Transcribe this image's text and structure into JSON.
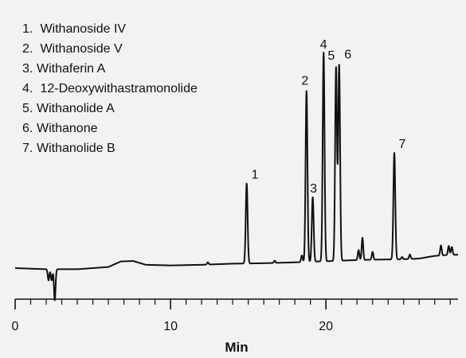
{
  "chart_data": {
    "type": "line",
    "title": "",
    "xlabel": "Min",
    "ylabel": "",
    "xlim": [
      0,
      28.5
    ],
    "x_ticks": [
      "0",
      "10",
      "20"
    ],
    "legend": [
      {
        "num": "1.",
        "label": "Withanoside IV"
      },
      {
        "num": "2.",
        "label": "Withanoside V"
      },
      {
        "num": "3.",
        "label": "Withaferin A"
      },
      {
        "num": "4.",
        "label": "12-Deoxywithastramonolide"
      },
      {
        "num": "5.",
        "label": "Withanolide A"
      },
      {
        "num": "6.",
        "label": "Withanone"
      },
      {
        "num": "7.",
        "label": "Withanolide B"
      }
    ],
    "peaks": [
      {
        "label": "1",
        "rt": 14.9,
        "height": 0.36
      },
      {
        "label": "2",
        "rt": 18.75,
        "height": 0.77
      },
      {
        "label": "3",
        "rt": 19.15,
        "height": 0.29
      },
      {
        "label": "4",
        "rt": 19.85,
        "height": 0.94
      },
      {
        "label": "5",
        "rt": 20.65,
        "height": 0.87
      },
      {
        "label": "6",
        "rt": 20.85,
        "height": 0.88
      },
      {
        "label": "7",
        "rt": 24.4,
        "height": 0.48
      }
    ],
    "baseline": [
      [
        0,
        0.0
      ],
      [
        2,
        -0.005
      ],
      [
        4,
        -0.005
      ],
      [
        6,
        0.005
      ],
      [
        6.8,
        0.03
      ],
      [
        7.6,
        0.032
      ],
      [
        8.4,
        0.015
      ],
      [
        10,
        0.012
      ],
      [
        12,
        0.015
      ],
      [
        14,
        0.02
      ],
      [
        16,
        0.022
      ],
      [
        18,
        0.026
      ],
      [
        19.5,
        0.03
      ],
      [
        20.5,
        0.032
      ],
      [
        21.5,
        0.035
      ],
      [
        23,
        0.038
      ],
      [
        25,
        0.04
      ],
      [
        26,
        0.043
      ],
      [
        27,
        0.055
      ],
      [
        28,
        0.06
      ],
      [
        28.5,
        0.06
      ]
    ],
    "minor_peaks": [
      {
        "rt": 2.15,
        "height": -0.05
      },
      {
        "rt": 2.35,
        "height": -0.05
      },
      {
        "rt": 2.55,
        "height": -0.14
      },
      {
        "rt": 12.4,
        "height": 0.01
      },
      {
        "rt": 16.7,
        "height": 0.01
      },
      {
        "rt": 18.45,
        "height": 0.03
      },
      {
        "rt": 22.1,
        "height": 0.045
      },
      {
        "rt": 22.35,
        "height": 0.1
      },
      {
        "rt": 23,
        "height": 0.035
      },
      {
        "rt": 24.9,
        "height": 0.01
      },
      {
        "rt": 25.4,
        "height": 0.02
      },
      {
        "rt": 27.4,
        "height": 0.045
      },
      {
        "rt": 27.9,
        "height": 0.04
      },
      {
        "rt": 28.1,
        "height": 0.035
      }
    ]
  }
}
